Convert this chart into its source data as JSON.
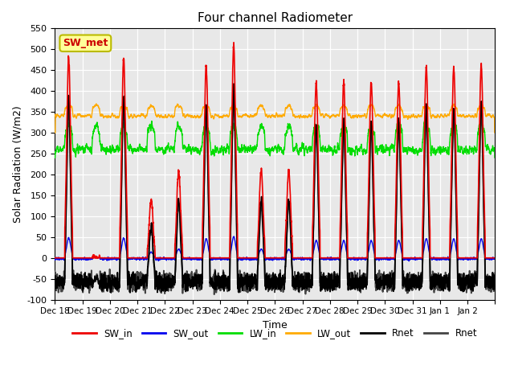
{
  "title": "Four channel Radiometer",
  "xlabel": "Time",
  "ylabel": "Solar Radiation (W/m2)",
  "annotation": "SW_met",
  "ylim": [
    -100,
    550
  ],
  "yticks": [
    -100,
    -50,
    0,
    50,
    100,
    150,
    200,
    250,
    300,
    350,
    400,
    450,
    500,
    550
  ],
  "colors": {
    "SW_in": "#ee0000",
    "SW_out": "#0000ee",
    "LW_in": "#00dd00",
    "LW_out": "#ffaa00",
    "Rnet1": "#000000",
    "Rnet2": "#444444"
  },
  "background": "#e8e8e8"
}
